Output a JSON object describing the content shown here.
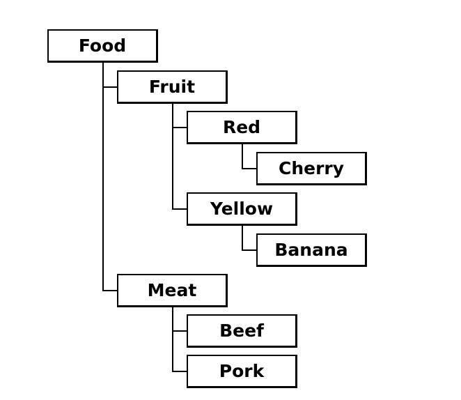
{
  "tree": {
    "label": "Food",
    "children": [
      {
        "label": "Fruit",
        "children": [
          {
            "label": "Red",
            "children": [
              {
                "label": "Cherry",
                "children": []
              }
            ]
          },
          {
            "label": "Yellow",
            "children": [
              {
                "label": "Banana",
                "children": []
              }
            ]
          }
        ]
      },
      {
        "label": "Meat",
        "children": [
          {
            "label": "Beef",
            "children": []
          },
          {
            "label": "Pork",
            "children": []
          }
        ]
      }
    ]
  }
}
